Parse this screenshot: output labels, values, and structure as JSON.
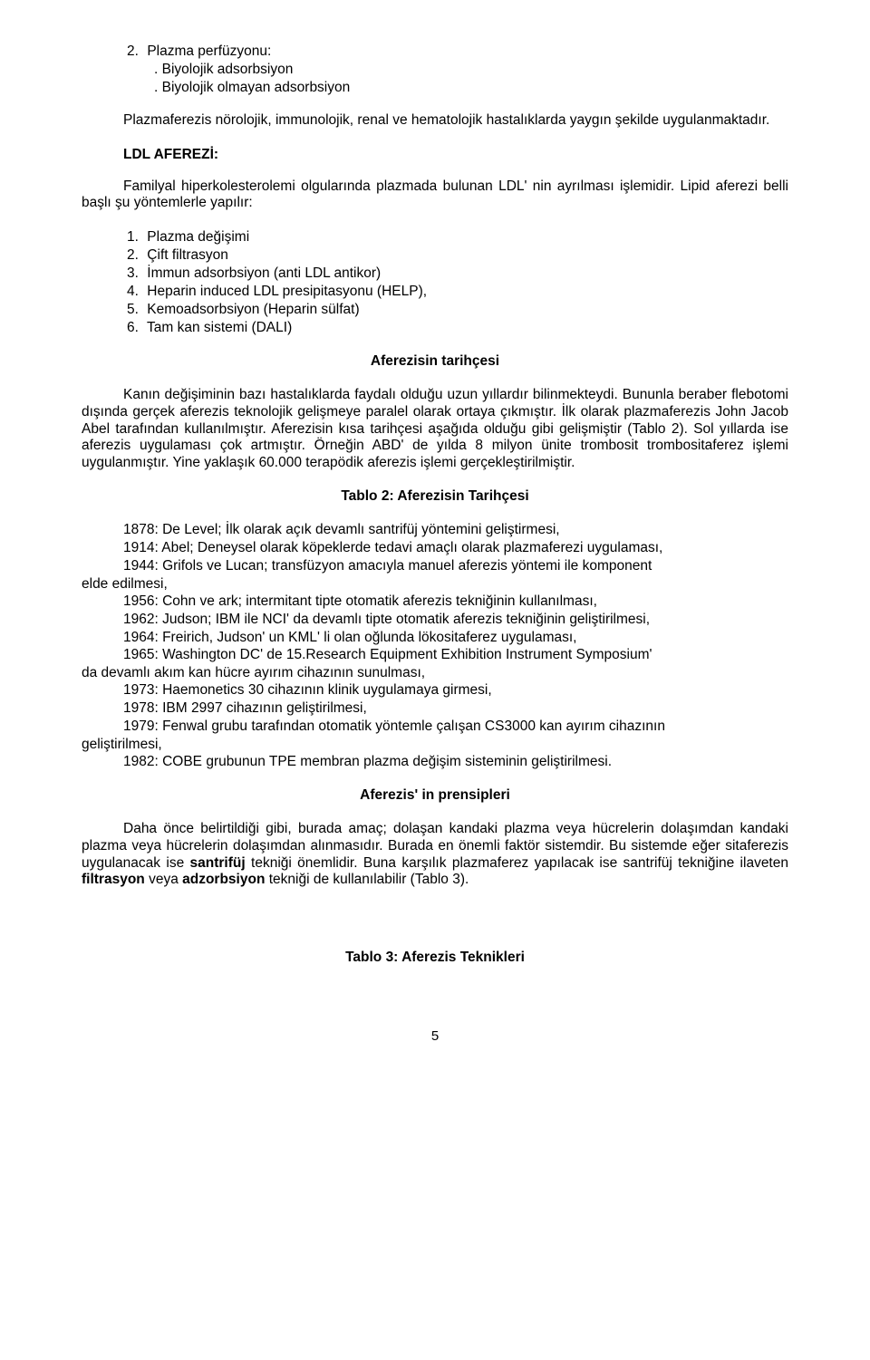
{
  "top": {
    "item2_num": "2.",
    "item2_text": "Plazma perfüzyonu:",
    "sub_a": ". Biyolojik adsorbsiyon",
    "sub_b": ". Biyolojik olmayan adsorbsiyon",
    "para1": "Plazmaferezis nörolojik, immunolojik, renal ve hematolojik hastalıklarda yaygın şekilde uygulanmaktadır."
  },
  "ldl": {
    "title": "LDL AFEREZİ:",
    "intro": "Familyal hiperkolesterolemi olgularında plazmada bulunan LDL' nin ayrılması işlemidir. Lipid aferezi belli başlı şu yöntemlerle yapılır:",
    "items": [
      "Plazma değişimi",
      "Çift filtrasyon",
      "İmmun adsorbsiyon (anti LDL antikor)",
      "Heparin induced LDL presipitasyonu (HELP),",
      "Kemoadsorbsiyon (Heparin sülfat)",
      "Tam kan sistemi (DALI)"
    ]
  },
  "tarihce": {
    "title": "Aferezisin tarihçesi",
    "para": "Kanın değişiminin bazı hastalıklarda faydalı olduğu uzun yıllardır bilinmekteydi. Bununla beraber flebotomi dışında gerçek aferezis teknolojik gelişmeye paralel olarak ortaya çıkmıştır. İlk olarak plazmaferezis John Jacob Abel tarafından kullanılmıştır. Aferezisin kısa tarihçesi aşağıda olduğu gibi gelişmiştir (Tablo 2). Sol yıllarda ise aferezis uygulaması çok artmıştır. Örneğin ABD' de yılda 8 milyon ünite trombosit trombositaferez işlemi uygulanmıştır. Yine yaklaşık 60.000 terapödik aferezis işlemi gerçekleştirilmiştir."
  },
  "tablo2": {
    "title": "Tablo 2: Aferezisin Tarihçesi",
    "l1": "1878: De Level; İlk olarak açık devamlı santrifüj yöntemini geliştirmesi,",
    "l2": "1914: Abel; Deneysel olarak köpeklerde tedavi amaçlı olarak plazmaferezi uygulaması,",
    "l3a": "1944: Grifols ve Lucan; transfüzyon amacıyla manuel aferezis yöntemi ile komponent",
    "l3b": "elde edilmesi,",
    "l4": "1956: Cohn ve ark; intermitant tipte otomatik aferezis tekniğinin kullanılması,",
    "l5": "1962: Judson; IBM ile NCI' da devamlı tipte otomatik aferezis tekniğinin geliştirilmesi,",
    "l6": "1964: Freirich, Judson' un KML' li olan oğlunda lökositaferez uygulaması,",
    "l7a": "1965: Washington DC' de 15.Research Equipment Exhibition Instrument Symposium'",
    "l7b": "da devamlı akım kan hücre ayırım cihazının sunulması,",
    "l8": "1973: Haemonetics 30 cihazının klinik uygulamaya girmesi,",
    "l9": "1978: IBM 2997 cihazının geliştirilmesi,",
    "l10a": "1979: Fenwal grubu tarafından otomatik yöntemle çalışan CS3000 kan ayırım cihazının",
    "l10b": "geliştirilmesi,",
    "l11": "1982: COBE grubunun TPE membran plazma değişim sisteminin geliştirilmesi."
  },
  "prensip": {
    "title": "Aferezis' in prensipleri",
    "pre": "Daha önce belirtildiği gibi, burada amaç; dolaşan kandaki plazma veya hücrelerin dolaşımdan kandaki plazma veya hücrelerin dolaşımdan alınmasıdır. Burada en önemli faktör sistemdir. Bu sistemde eğer sitaferezis uygulanacak ise ",
    "b1": "santrifüj",
    "mid1": " tekniği önemlidir. Buna karşılık plazmaferez yapılacak ise santrifüj tekniğine ilaveten ",
    "b2": "filtrasyon",
    "mid2": " veya ",
    "b3": "adzorbsiyon",
    "post": " tekniği de kullanılabilir (Tablo 3)."
  },
  "tablo3": {
    "title": "Tablo 3: Aferezis Teknikleri"
  },
  "page_number": "5"
}
